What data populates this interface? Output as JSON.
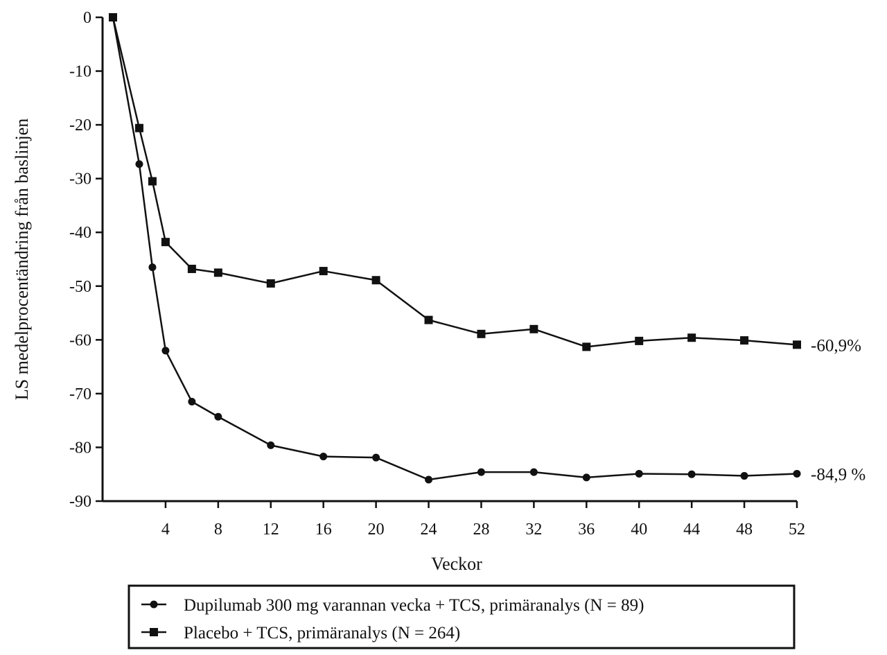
{
  "chart_data": {
    "type": "line",
    "xlabel": "Veckor",
    "ylabel": "LS medelprocentändring från baslinjen",
    "xlim": [
      0,
      52
    ],
    "ylim": [
      -90,
      0
    ],
    "x_ticks": [
      4,
      8,
      12,
      16,
      20,
      24,
      28,
      32,
      36,
      40,
      44,
      48,
      52
    ],
    "y_ticks": [
      0,
      -10,
      -20,
      -30,
      -40,
      -50,
      -60,
      -70,
      -80,
      -90
    ],
    "grid": false,
    "legend_position": "bottom",
    "series": [
      {
        "name": "Dupilumab 300 mg varannan vecka + TCS, primäranalys (N = 89)",
        "marker": "circle",
        "color": "#111111",
        "x": [
          0,
          2,
          3,
          4,
          6,
          8,
          12,
          16,
          20,
          24,
          28,
          32,
          36,
          40,
          44,
          48,
          52
        ],
        "y": [
          0,
          -27.3,
          -46.5,
          -62.0,
          -71.5,
          -74.3,
          -79.6,
          -81.7,
          -81.9,
          -86.0,
          -84.6,
          -84.6,
          -85.6,
          -84.9,
          -85.0,
          -85.3,
          -84.9
        ],
        "end_label": "-84,9 %"
      },
      {
        "name": "Placebo + TCS, primäranalys (N = 264)",
        "marker": "square",
        "color": "#111111",
        "x": [
          0,
          2,
          3,
          4,
          6,
          8,
          12,
          16,
          20,
          24,
          28,
          32,
          36,
          40,
          44,
          48,
          52
        ],
        "y": [
          0,
          -20.6,
          -30.5,
          -41.8,
          -46.8,
          -47.5,
          -49.5,
          -47.2,
          -48.9,
          -56.3,
          -58.9,
          -58.0,
          -61.3,
          -60.2,
          -59.6,
          -60.1,
          -60.9
        ],
        "end_label": "-60,9%"
      }
    ]
  }
}
